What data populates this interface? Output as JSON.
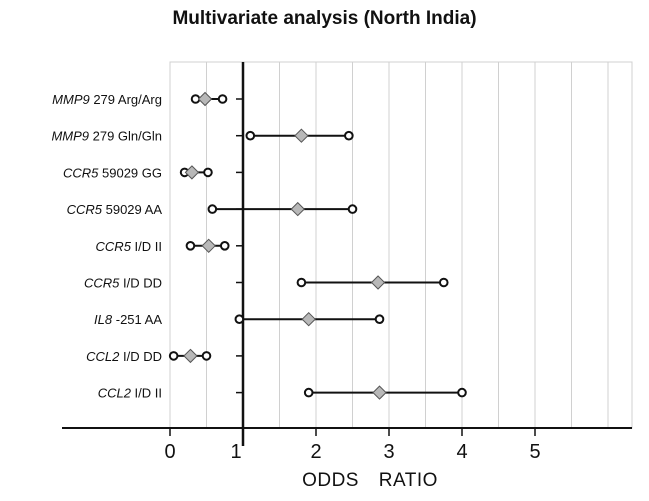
{
  "chart_data": {
    "type": "forest",
    "title": "Multivariate analysis (North India)",
    "xlabel": "ODDS   RATIO",
    "xlim": [
      0,
      6.3
    ],
    "x_ticks": [
      0,
      1,
      2,
      3,
      4,
      5
    ],
    "reference_line": 1,
    "grid": "vertical",
    "rows": [
      {
        "gene": "MMP9",
        "variant": "279 Arg/Arg",
        "or": 0.48,
        "ci_low": 0.35,
        "ci_high": 0.72
      },
      {
        "gene": "MMP9",
        "variant": "279 Gln/Gln",
        "or": 1.8,
        "ci_low": 1.1,
        "ci_high": 2.45
      },
      {
        "gene": "CCR5",
        "variant": "59029 GG",
        "or": 0.3,
        "ci_low": 0.2,
        "ci_high": 0.52
      },
      {
        "gene": "CCR5",
        "variant": "59029 AA",
        "or": 1.75,
        "ci_low": 0.58,
        "ci_high": 2.5
      },
      {
        "gene": "CCR5",
        "variant": "I/D II",
        "or": 0.53,
        "ci_low": 0.28,
        "ci_high": 0.75
      },
      {
        "gene": "CCR5",
        "variant": "I/D DD",
        "or": 2.85,
        "ci_low": 1.8,
        "ci_high": 3.75
      },
      {
        "gene": "IL8",
        "variant": "-251 AA",
        "or": 1.9,
        "ci_low": 0.95,
        "ci_high": 2.87
      },
      {
        "gene": "CCL2",
        "variant": "I/D DD",
        "or": 0.28,
        "ci_low": 0.05,
        "ci_high": 0.5
      },
      {
        "gene": "CCL2",
        "variant": "I/D II",
        "or": 2.87,
        "ci_low": 1.9,
        "ci_high": 4.0
      }
    ]
  }
}
